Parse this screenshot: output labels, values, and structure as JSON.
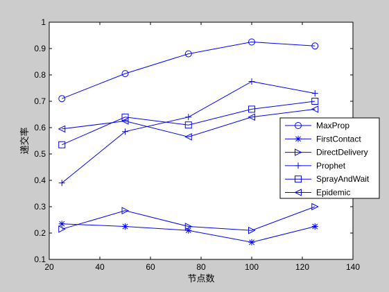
{
  "chart_data": {
    "type": "line",
    "xlabel": "节点数",
    "ylabel": "递交率",
    "xlim": [
      20,
      140
    ],
    "ylim": [
      0.1,
      1.0
    ],
    "xticks": [
      20,
      40,
      60,
      80,
      100,
      120,
      140
    ],
    "yticks": [
      0.1,
      0.2,
      0.3,
      0.4,
      0.5,
      0.6,
      0.7,
      0.8,
      0.9,
      1.0
    ],
    "ytick_labels": [
      "0.1",
      "0.2",
      "0.3",
      "0.4",
      "0.5",
      "0.6",
      "0.7",
      "0.8",
      "0.9",
      "1"
    ],
    "grid": false,
    "legend_position": "right",
    "color": "#0000ff",
    "x": [
      25,
      50,
      75,
      100,
      125
    ],
    "series": [
      {
        "name": "MaxProp",
        "marker": "circle",
        "values": [
          0.71,
          0.805,
          0.88,
          0.925,
          0.91
        ]
      },
      {
        "name": "FirstContact",
        "marker": "asterisk",
        "values": [
          0.235,
          0.225,
          0.21,
          0.165,
          0.225
        ]
      },
      {
        "name": "DirectDelivery",
        "marker": "triangle-right",
        "values": [
          0.215,
          0.285,
          0.225,
          0.21,
          0.3
        ]
      },
      {
        "name": "Prophet",
        "marker": "plus",
        "values": [
          0.39,
          0.585,
          0.64,
          0.775,
          0.73
        ]
      },
      {
        "name": "SprayAndWait",
        "marker": "square",
        "values": [
          0.535,
          0.64,
          0.61,
          0.67,
          0.7
        ]
      },
      {
        "name": "Epidemic",
        "marker": "triangle-left",
        "values": [
          0.595,
          0.625,
          0.565,
          0.64,
          0.67
        ]
      }
    ]
  }
}
